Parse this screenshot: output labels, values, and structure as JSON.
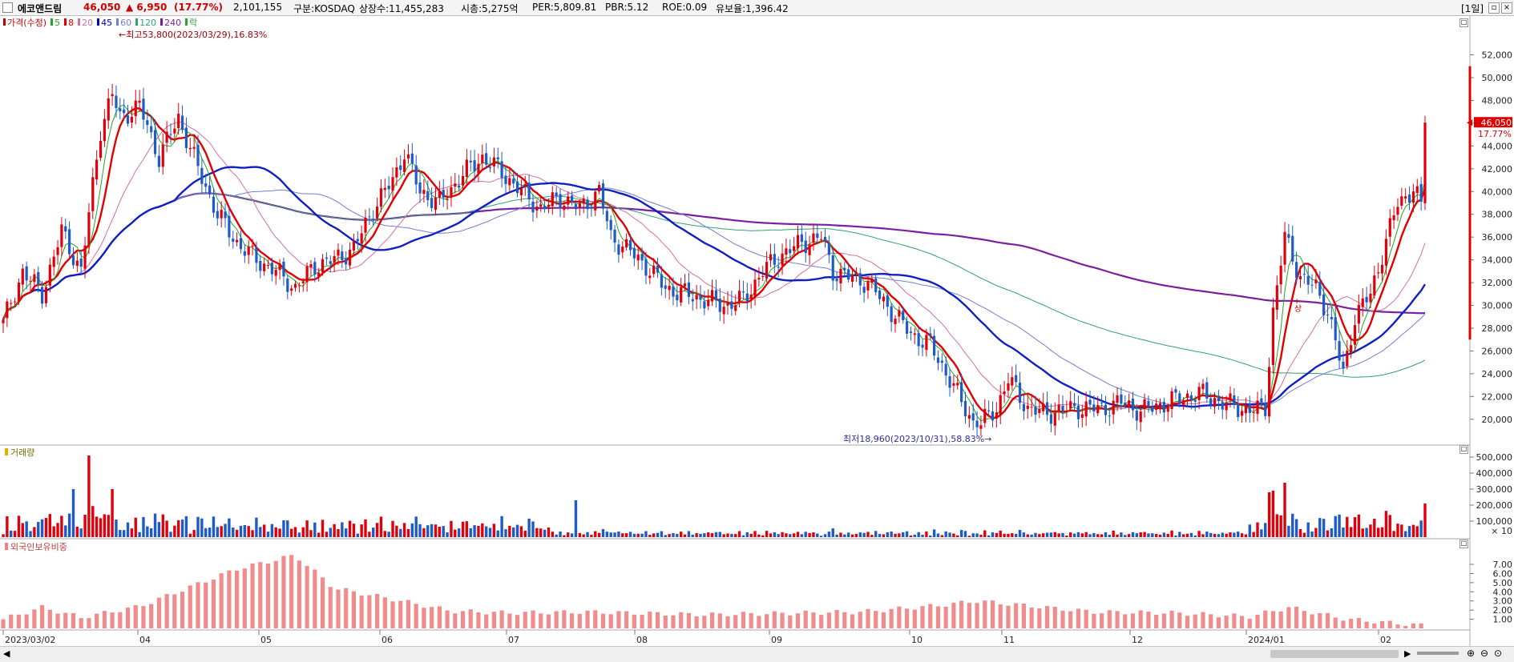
{
  "header": {
    "name": "에코앤드림",
    "price": "46,050",
    "change": "▲ 6,950",
    "change_pct": "(17.77%)",
    "volume": "2,101,155",
    "market": "구분:KOSDAQ",
    "listed": "상장수:11,455,283",
    "mcap": "시총:5,275억",
    "per": "PER:5,809.81",
    "pbr": "PBR:5.12",
    "roe": "ROE:0.09",
    "float": "유보율:1,396.42",
    "period": "[1일]",
    "colors": {
      "up": "#e0000b",
      "down": "#1e5bc6"
    }
  },
  "price_panel": {
    "legend": [
      {
        "label": "가격(수정)",
        "color": "#c00000"
      },
      {
        "label": "5",
        "color": "#22a822"
      },
      {
        "label": "8",
        "color": "#e00000"
      },
      {
        "label": "20",
        "color": "#d070a0"
      },
      {
        "label": "45",
        "color": "#0000c0"
      },
      {
        "label": "60",
        "color": "#7080d0"
      },
      {
        "label": "120",
        "color": "#30a070"
      },
      {
        "label": "240",
        "color": "#7a1fa0"
      },
      {
        "label": "락",
        "color": "#30a030"
      }
    ],
    "high_annotation": "최고53,800(2023/03/29),16.83%",
    "low_annotation": "최저18,960(2023/10/31),58.83%",
    "event_label": "+상",
    "y_ticks": [
      "52,000",
      "50,000",
      "48,000",
      "46,000",
      "44,000",
      "42,000",
      "40,000",
      "38,000",
      "36,000",
      "34,000",
      "32,000",
      "30,000",
      "28,000",
      "26,000",
      "24,000",
      "22,000",
      "20,000"
    ],
    "current_label": "46,050",
    "current_pct_label": "17.77%"
  },
  "volume_panel": {
    "title": "거래량",
    "y_ticks": [
      "500,000",
      "400,000",
      "300,000",
      "200,000",
      "100,000"
    ],
    "unit": "× 10"
  },
  "foreign_panel": {
    "title": "외국인보유비중",
    "y_ticks": [
      "7.00",
      "6.00",
      "5.00",
      "4.00",
      "3.00",
      "2.00",
      "1.00"
    ]
  },
  "x_axis": [
    "2023/03/02",
    "04",
    "05",
    "06",
    "07",
    "08",
    "09",
    "10",
    "11",
    "12",
    "2024/01",
    "02"
  ],
  "chart_data": {
    "type": "candlestick",
    "price_range": [
      19000,
      54500
    ],
    "anchors_close": [
      [
        0,
        28400
      ],
      [
        5,
        33000
      ],
      [
        10,
        31000
      ],
      [
        15,
        36500
      ],
      [
        20,
        33000
      ],
      [
        25,
        45500
      ],
      [
        28,
        48500
      ],
      [
        30,
        46500
      ],
      [
        35,
        47500
      ],
      [
        40,
        43000
      ],
      [
        45,
        46500
      ],
      [
        50,
        42000
      ],
      [
        55,
        38000
      ],
      [
        60,
        35500
      ],
      [
        65,
        34000
      ],
      [
        70,
        33000
      ],
      [
        75,
        31500
      ],
      [
        80,
        33500
      ],
      [
        85,
        34000
      ],
      [
        90,
        35000
      ],
      [
        95,
        38500
      ],
      [
        100,
        41000
      ],
      [
        103,
        43500
      ],
      [
        107,
        40000
      ],
      [
        112,
        39000
      ],
      [
        118,
        41500
      ],
      [
        123,
        43000
      ],
      [
        127,
        42000
      ],
      [
        133,
        40000
      ],
      [
        138,
        38500
      ],
      [
        143,
        39500
      ],
      [
        148,
        38500
      ],
      [
        153,
        40000
      ],
      [
        156,
        36000
      ],
      [
        160,
        35000
      ],
      [
        165,
        33500
      ],
      [
        170,
        31500
      ],
      [
        175,
        31000
      ],
      [
        180,
        30500
      ],
      [
        185,
        30000
      ],
      [
        190,
        30500
      ],
      [
        195,
        33000
      ],
      [
        200,
        34500
      ],
      [
        205,
        35500
      ],
      [
        210,
        36000
      ],
      [
        213,
        33000
      ],
      [
        217,
        32500
      ],
      [
        222,
        32000
      ],
      [
        228,
        29500
      ],
      [
        233,
        27500
      ],
      [
        238,
        26500
      ],
      [
        243,
        23500
      ],
      [
        246,
        21500
      ],
      [
        250,
        19200
      ],
      [
        255,
        21000
      ],
      [
        258,
        23500
      ],
      [
        263,
        21000
      ],
      [
        267,
        20500
      ],
      [
        272,
        20800
      ],
      [
        277,
        21000
      ],
      [
        282,
        20900
      ],
      [
        287,
        21500
      ],
      [
        292,
        20700
      ],
      [
        297,
        21300
      ],
      [
        302,
        21800
      ],
      [
        307,
        22300
      ],
      [
        312,
        21600
      ],
      [
        317,
        21000
      ],
      [
        322,
        20800
      ],
      [
        324,
        21000
      ],
      [
        326,
        29500
      ],
      [
        329,
        36000
      ],
      [
        333,
        32500
      ],
      [
        337,
        31500
      ],
      [
        340,
        29500
      ],
      [
        344,
        24000
      ],
      [
        347,
        29000
      ],
      [
        351,
        31000
      ],
      [
        354,
        34500
      ],
      [
        358,
        39000
      ],
      [
        362,
        40200
      ],
      [
        364,
        38800
      ],
      [
        365,
        46050
      ]
    ],
    "volume_pattern": "heights follow close-change magnitude; spikes near 2023/03 and 2024/01",
    "foreign_ownership_anchors": [
      [
        0,
        1.0
      ],
      [
        10,
        2.3
      ],
      [
        20,
        1.2
      ],
      [
        35,
        2.4
      ],
      [
        60,
        6.5
      ],
      [
        75,
        8.0
      ],
      [
        85,
        4.4
      ],
      [
        100,
        3.2
      ],
      [
        115,
        1.9
      ],
      [
        130,
        1.7
      ],
      [
        150,
        1.8
      ],
      [
        180,
        1.5
      ],
      [
        220,
        1.8
      ],
      [
        240,
        2.5
      ],
      [
        250,
        3.0
      ],
      [
        260,
        2.6
      ],
      [
        280,
        1.8
      ],
      [
        300,
        1.7
      ],
      [
        320,
        1.3
      ],
      [
        330,
        2.3
      ],
      [
        345,
        1.0
      ],
      [
        365,
        0.3
      ]
    ]
  }
}
